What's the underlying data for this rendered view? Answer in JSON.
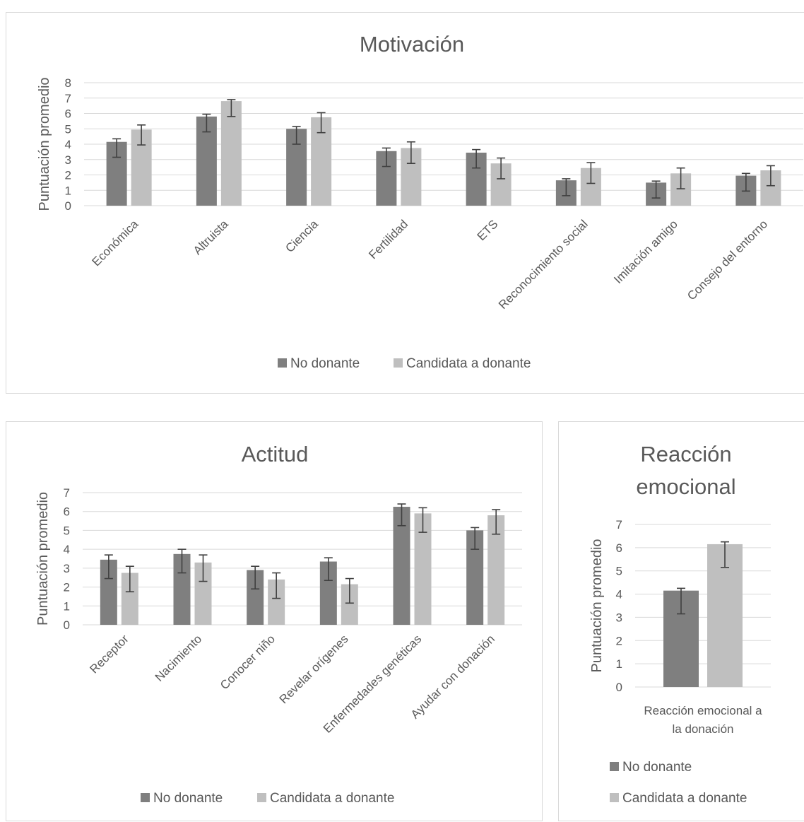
{
  "colors": {
    "no_donante": "#7f7f7f",
    "candidata": "#bfbfbf",
    "grid": "#d9d9d9",
    "text": "#595959",
    "error": "#404040"
  },
  "chart_data": [
    {
      "type": "bar",
      "title": "Motivación",
      "ylabel": "Puntuación promedio",
      "ylim": [
        0,
        8
      ],
      "yticks": [
        "0",
        "1",
        "2",
        "3",
        "4",
        "5",
        "6",
        "7",
        "8"
      ],
      "grid": true,
      "legend": "bottom",
      "categories": [
        "Económica",
        "Altruista",
        "Ciencia",
        "Fertilidad",
        "ETS",
        "Reconocimiento social",
        "Imitación amigo",
        "Consejo del entorno"
      ],
      "series": [
        {
          "name": "No donante",
          "values": [
            4.15,
            5.8,
            5.0,
            3.55,
            3.45,
            1.65,
            1.5,
            1.95
          ],
          "error_low": [
            1.0,
            1.0,
            1.0,
            1.0,
            1.0,
            1.0,
            1.0,
            1.0
          ],
          "error_high": [
            0.2,
            0.15,
            0.15,
            0.2,
            0.2,
            0.1,
            0.1,
            0.15
          ]
        },
        {
          "name": "Candidata a donante",
          "values": [
            4.95,
            6.8,
            5.75,
            3.75,
            2.75,
            2.45,
            2.1,
            2.3
          ],
          "error_low": [
            1.0,
            1.0,
            1.0,
            1.0,
            1.0,
            1.0,
            1.0,
            1.0
          ],
          "error_high": [
            0.3,
            0.1,
            0.3,
            0.4,
            0.35,
            0.35,
            0.35,
            0.3
          ]
        }
      ]
    },
    {
      "type": "bar",
      "title": "Actitud",
      "ylabel": "Puntuación promedio",
      "ylim": [
        0,
        7
      ],
      "yticks": [
        "0",
        "1",
        "2",
        "3",
        "4",
        "5",
        "6",
        "7"
      ],
      "grid": true,
      "legend": "bottom",
      "categories": [
        "Receptor",
        "Nacimiento",
        "Conocer niño",
        "Revelar orígenes",
        "Enfermedades genéticas",
        "Ayudar con donación"
      ],
      "series": [
        {
          "name": "No donante",
          "values": [
            3.45,
            3.75,
            2.9,
            3.35,
            6.25,
            5.0
          ],
          "error_low": [
            1.0,
            1.0,
            1.0,
            1.0,
            1.0,
            1.0
          ],
          "error_high": [
            0.25,
            0.25,
            0.2,
            0.2,
            0.15,
            0.15
          ]
        },
        {
          "name": "Candidata a donante",
          "values": [
            2.75,
            3.3,
            2.4,
            2.15,
            5.9,
            5.8
          ],
          "error_low": [
            1.0,
            1.0,
            1.0,
            1.0,
            1.0,
            1.0
          ],
          "error_high": [
            0.35,
            0.4,
            0.35,
            0.3,
            0.3,
            0.3
          ]
        }
      ]
    },
    {
      "type": "bar",
      "title": "Reacción emocional",
      "ylabel": "Puntuación promedio",
      "ylim": [
        0,
        7
      ],
      "yticks": [
        "0",
        "1",
        "2",
        "3",
        "4",
        "5",
        "6",
        "7"
      ],
      "grid": true,
      "legend": "bottom",
      "categories": [
        "Reacción emocional a la donación"
      ],
      "series": [
        {
          "name": "No donante",
          "values": [
            4.15
          ],
          "error_low": [
            1.0
          ],
          "error_high": [
            0.1
          ]
        },
        {
          "name": "Candidata a donante",
          "values": [
            6.15
          ],
          "error_low": [
            1.0
          ],
          "error_high": [
            0.1
          ]
        }
      ]
    }
  ]
}
